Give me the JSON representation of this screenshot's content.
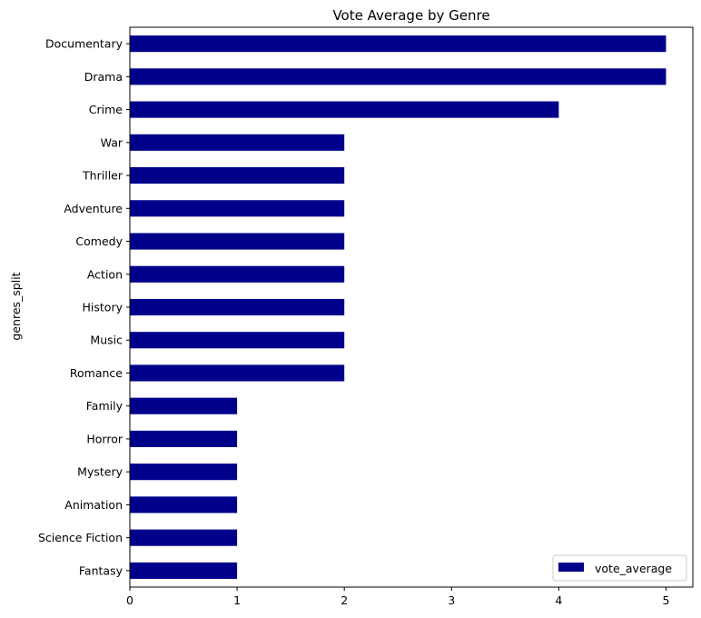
{
  "chart_data": {
    "type": "bar",
    "orientation": "horizontal",
    "title": "Vote Average by Genre",
    "xlabel": "",
    "ylabel": "genres_split",
    "categories": [
      "Documentary",
      "Drama",
      "Crime",
      "War",
      "Thriller",
      "Adventure",
      "Comedy",
      "Action",
      "History",
      "Music",
      "Romance",
      "Family",
      "Horror",
      "Mystery",
      "Animation",
      "Science Fiction",
      "Fantasy"
    ],
    "series": [
      {
        "name": "vote_average",
        "color": "#00008b",
        "values": [
          5,
          5,
          4,
          2,
          2,
          2,
          2,
          2,
          2,
          2,
          2,
          1,
          1,
          1,
          1,
          1,
          1
        ]
      }
    ],
    "xlim": [
      0,
      5.25
    ],
    "xticks": [
      0,
      1,
      2,
      3,
      4,
      5
    ],
    "grid": false,
    "legend": {
      "position": "bottom-right",
      "entries": [
        "vote_average"
      ]
    }
  }
}
